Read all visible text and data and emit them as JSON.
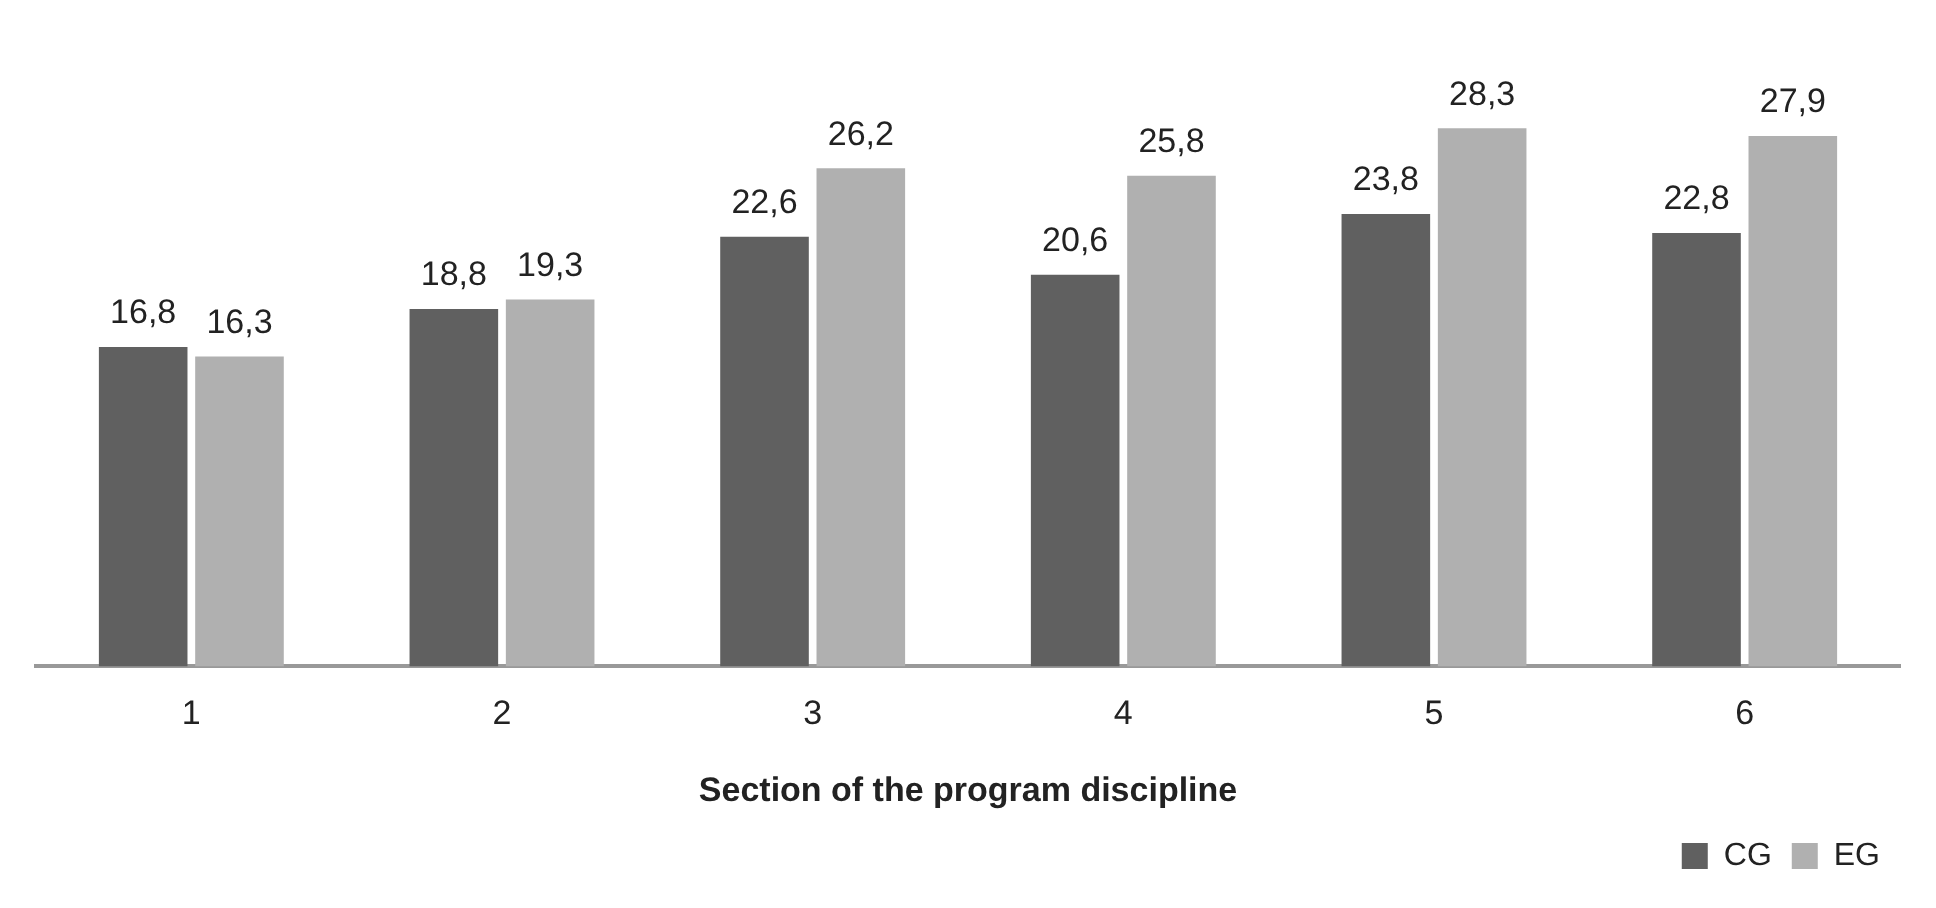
{
  "chart_data": {
    "type": "bar",
    "xlabel": "Section of the program discipline",
    "categories": [
      "1",
      "2",
      "3",
      "4",
      "5",
      "6"
    ],
    "series": [
      {
        "name": "CG",
        "color": "#606060",
        "values": [
          16.8,
          18.8,
          22.6,
          20.6,
          23.8,
          22.8
        ],
        "value_labels": [
          "16,8",
          "18,8",
          "22,6",
          "20,6",
          "23,8",
          "22,8"
        ]
      },
      {
        "name": "EG",
        "color": "#b0b0b0",
        "values": [
          16.3,
          19.3,
          26.2,
          25.8,
          28.3,
          27.9
        ],
        "value_labels": [
          "16,3",
          "19,3",
          "26,2",
          "25,8",
          "28,3",
          "27,9"
        ]
      }
    ],
    "tick_labels": "x",
    "grid": false,
    "legend": "bottom right"
  }
}
